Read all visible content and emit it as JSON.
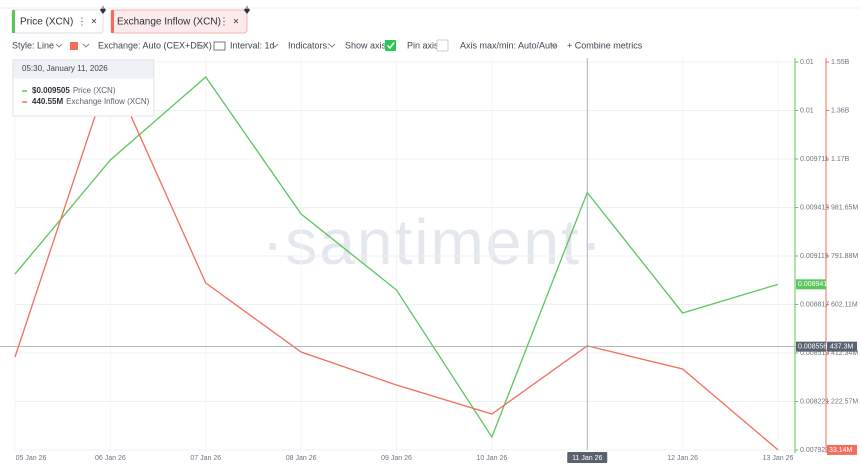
{
  "tabs": [
    "Price (XCN)",
    "Exchange Inflow (XCN)"
  ],
  "toolbar": {
    "style": "Style: Line",
    "exchange": "Exchange: Auto (CEX+DEX)",
    "interval": "Interval: 1d",
    "indicators": "Indicators:",
    "show_axis": "Show axis",
    "pin_axis": "Pin axis",
    "axis_minmax": "Axis max/min: Auto/Auto",
    "combine": "+ Combine metrics"
  },
  "watermark": "·santiment·",
  "tooltip": {
    "title": "05:30, January 11, 2026",
    "rows": [
      {
        "value": "$0.009505",
        "name": "Price (XCN)"
      },
      {
        "value": "440.55M",
        "name": "Exchange Inflow (XCN)"
      }
    ]
  },
  "chart_data": {
    "type": "line",
    "categories": [
      "05 Jan 26",
      "06 Jan 26",
      "07 Jan 26",
      "08 Jan 26",
      "09 Jan 26",
      "10 Jan 26",
      "11 Jan 26",
      "12 Jan 26",
      "13 Jan 26"
    ],
    "series": [
      {
        "name": "Price (XCN)",
        "color": "#5bc65b",
        "values": [
          0.009004,
          0.009705,
          0.010215,
          0.009373,
          0.008906,
          0.008003,
          0.009505,
          0.008765,
          0.008941
        ]
      },
      {
        "name": "Exchange Inflow (XCN)",
        "color": "#f26d5b",
        "axis": "y2",
        "values": [
          396700000,
          1519700000,
          686200000,
          416200000,
          287100000,
          173700000,
          440550000,
          349700000,
          33140000
        ],
        "value_labels": [
          null,
          null,
          null,
          null,
          null,
          null,
          null,
          null,
          "33.14M"
        ]
      }
    ],
    "ylim": [
      0.007923,
      0.010307
    ],
    "yticks": [
      0.007923,
      0.008221,
      0.008519,
      0.008817,
      0.009115,
      0.009413,
      0.009711,
      {
        "value": 0.010009,
        "label": "0.01"
      },
      {
        "value": 0.010307,
        "label": "0.01"
      }
    ],
    "y2lim": [
      32800000,
      1550960000
    ],
    "y2ticks": [
      {
        "value": 222570000,
        "label": "222.57M"
      },
      {
        "value": 412340000,
        "label": "412.34M"
      },
      {
        "value": 602110000,
        "label": "602.11M"
      },
      {
        "value": 791880000,
        "label": "791.88M"
      },
      {
        "value": 981650000,
        "label": "981.65M"
      },
      {
        "value": 1171420000,
        "label": "1.17B"
      },
      {
        "value": 1361190000,
        "label": "1.36B"
      },
      {
        "value": 1550960000,
        "label": "1.55B"
      }
    ],
    "grid": true,
    "crosshair": {
      "x": "11 Jan 26",
      "y": 0.008558,
      "y2_label": "437.3M"
    }
  }
}
